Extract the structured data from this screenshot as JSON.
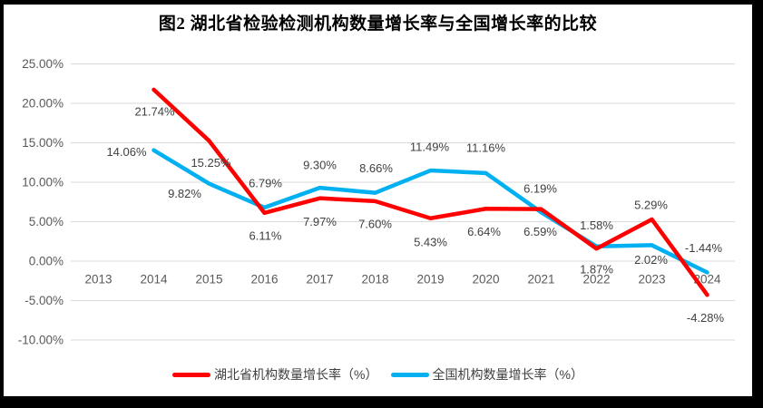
{
  "chart_data": {
    "type": "line",
    "title": "图2  湖北省检验检测机构数量增长率与全国增长率的比较",
    "categories": [
      "2013",
      "2014",
      "2015",
      "2016",
      "2017",
      "2018",
      "2019",
      "2020",
      "2021",
      "2022",
      "2023",
      "2024"
    ],
    "series": [
      {
        "name": "湖北省机构数量增长率（%）",
        "color": "#FF0000",
        "values": [
          null,
          21.74,
          15.25,
          6.11,
          7.97,
          7.6,
          5.43,
          6.64,
          6.59,
          1.58,
          5.29,
          -4.28
        ],
        "labels": [
          "",
          "21.74%",
          "15.25%",
          "6.11%",
          "7.97%",
          "7.60%",
          "5.43%",
          "6.64%",
          "6.59%",
          "1.58%",
          "5.29%",
          "-4.28%"
        ],
        "label_offsets": [
          [
            0,
            0
          ],
          [
            1,
            24
          ],
          [
            2,
            24
          ],
          [
            1,
            25
          ],
          [
            0,
            26
          ],
          [
            0,
            25
          ],
          [
            0,
            26
          ],
          [
            -2,
            25
          ],
          [
            -1,
            25
          ],
          [
            0,
            -26
          ],
          [
            -1,
            -16
          ],
          [
            -2,
            25
          ]
        ]
      },
      {
        "name": "全国机构数量增长率（%）",
        "color": "#00B0F0",
        "values": [
          null,
          14.06,
          9.82,
          6.79,
          9.3,
          8.66,
          11.49,
          11.16,
          6.19,
          1.87,
          2.02,
          -1.44
        ],
        "labels": [
          "",
          "14.06%",
          "9.82%",
          "6.79%",
          "9.30%",
          "8.66%",
          "11.49%",
          "11.16%",
          "6.19%",
          "1.87%",
          "2.02%",
          "-1.44%"
        ],
        "label_offsets": [
          [
            0,
            0
          ],
          [
            -30,
            2
          ],
          [
            -27,
            11
          ],
          [
            1,
            -27
          ],
          [
            0,
            -25
          ],
          [
            1,
            -27
          ],
          [
            -1,
            -26
          ],
          [
            0,
            -28
          ],
          [
            -1,
            -26
          ],
          [
            0,
            25
          ],
          [
            -1,
            16
          ],
          [
            -4,
            -27
          ]
        ]
      }
    ],
    "y_axis": {
      "min": -10,
      "max": 25,
      "step": 5,
      "tick_values": [
        25,
        20,
        15,
        10,
        5,
        0,
        -5,
        -10
      ],
      "tick_labels": [
        "25.00%",
        "20.00%",
        "15.00%",
        "10.00%",
        "5.00%",
        "0.00%",
        "-5.00%",
        "-10.00%"
      ]
    },
    "grid": true,
    "legend_position": "bottom",
    "style": {
      "grid_color": "#D9D9D9",
      "tick_text_color": "#595959",
      "data_label_color": "#404040",
      "background": "#FFFFFF",
      "frame_color": "#000000"
    }
  }
}
